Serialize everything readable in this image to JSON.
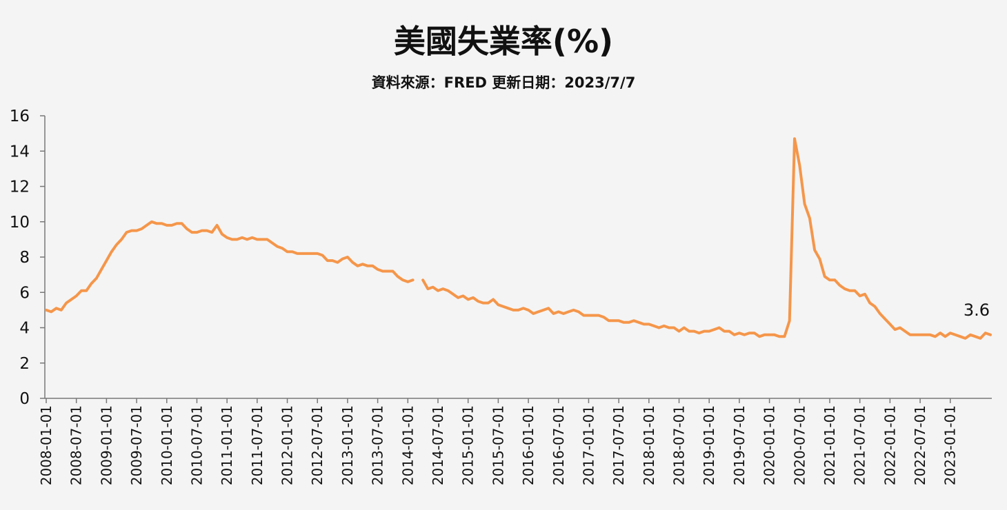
{
  "chart_data": {
    "type": "line",
    "title": "美國失業率(%)",
    "subtitle": "資料來源：FRED 更新日期：2023/7/7",
    "xlabel": "",
    "ylabel": "",
    "ylim": [
      0,
      16
    ],
    "yticks": [
      "0",
      "2",
      "4",
      "6",
      "8",
      "10",
      "12",
      "14",
      "16"
    ],
    "xticks": [
      "2008-01-01",
      "2008-07-01",
      "2009-01-01",
      "2009-07-01",
      "2010-01-01",
      "2010-07-01",
      "2011-01-01",
      "2011-07-01",
      "2012-01-01",
      "2012-07-01",
      "2013-01-01",
      "2013-07-01",
      "2014-01-01",
      "2014-07-01",
      "2015-01-01",
      "2015-07-01",
      "2016-01-01",
      "2016-07-01",
      "2017-01-01",
      "2017-07-01",
      "2018-01-01",
      "2018-07-01",
      "2019-01-01",
      "2019-07-01",
      "2020-01-01",
      "2020-07-01",
      "2021-01-01",
      "2021-07-01",
      "2022-01-01",
      "2022-07-01",
      "2023-01-01"
    ],
    "grid": false,
    "color": "#f5964a",
    "end_label": "3.6",
    "series": [
      {
        "x_start": "2008-01",
        "frequency": "monthly",
        "values": [
          5.0,
          4.9,
          5.1,
          5.0,
          5.4,
          5.6,
          5.8,
          6.1,
          6.1,
          6.5,
          6.8,
          7.3,
          7.8,
          8.3,
          8.7,
          9.0,
          9.4,
          9.5,
          9.5,
          9.6,
          9.8,
          10.0,
          9.9,
          9.9,
          9.8,
          9.8,
          9.9,
          9.9,
          9.6,
          9.4,
          9.4,
          9.5,
          9.5,
          9.4,
          9.8,
          9.3,
          9.1,
          9.0,
          9.0,
          9.1,
          9.0,
          9.1,
          9.0,
          9.0,
          9.0,
          8.8,
          8.6,
          8.5,
          8.3,
          8.3,
          8.2,
          8.2,
          8.2,
          8.2,
          8.2,
          8.1,
          7.8,
          7.8,
          7.7,
          7.9,
          8.0,
          7.7,
          7.5,
          7.6,
          7.5,
          7.5,
          7.3,
          7.2,
          7.2,
          7.2,
          6.9,
          6.7,
          6.6,
          6.7,
          null,
          6.7,
          6.2,
          6.3,
          6.1,
          6.2,
          6.1,
          5.9,
          5.7,
          5.8,
          5.6,
          5.7,
          5.5,
          5.4,
          5.4,
          5.6,
          5.3,
          5.2,
          5.1,
          5.0,
          5.0,
          5.1,
          5.0,
          4.8,
          4.9,
          5.0,
          5.1,
          4.8,
          4.9,
          4.8,
          4.9,
          5.0,
          4.9,
          4.7,
          4.7,
          4.7,
          4.7,
          4.6,
          4.4,
          4.4,
          4.4,
          4.3,
          4.3,
          4.4,
          4.3,
          4.2,
          4.2,
          4.1,
          4.0,
          4.1,
          4.0,
          4.0,
          3.8,
          4.0,
          3.8,
          3.8,
          3.7,
          3.8,
          3.8,
          3.9,
          4.0,
          3.8,
          3.8,
          3.6,
          3.7,
          3.6,
          3.7,
          3.7,
          3.5,
          3.6,
          3.6,
          3.6,
          3.5,
          3.5,
          4.4,
          14.7,
          13.2,
          11.0,
          10.2,
          8.4,
          7.9,
          6.9,
          6.7,
          6.7,
          6.4,
          6.2,
          6.1,
          6.1,
          5.8,
          5.9,
          5.4,
          5.2,
          4.8,
          4.5,
          4.2,
          3.9,
          4.0,
          3.8,
          3.6,
          3.6,
          3.6,
          3.6,
          3.6,
          3.5,
          3.7,
          3.5,
          3.7,
          3.6,
          3.5,
          3.4,
          3.6,
          3.5,
          3.4,
          3.7,
          3.6
        ]
      }
    ]
  }
}
